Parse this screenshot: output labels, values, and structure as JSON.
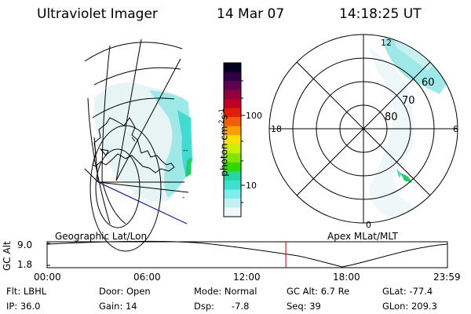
{
  "header": {
    "instrument": "Ultraviolet Imager",
    "date": "14 Mar 07",
    "time": "14:18:25 UT"
  },
  "colorbar": {
    "unit_label": "photon cm",
    "unit_sup1": "-2",
    "unit_mid": "s",
    "unit_sup2": "-1",
    "ticks": [
      "100",
      "10"
    ],
    "colors": [
      "#000020",
      "#300040",
      "#600050",
      "#90003a",
      "#c00020",
      "#e02000",
      "#f06000",
      "#f8a000",
      "#f8e000",
      "#c8f000",
      "#80e800",
      "#30d800",
      "#20d8a0",
      "#40e0d0",
      "#80ecec",
      "#c0f2f2",
      "#eef8f8"
    ]
  },
  "geo_map": {
    "label": "Geographic Lat/Lon",
    "tick_right": "--"
  },
  "polar_map": {
    "label": "Apex MLat/MLT",
    "mlt_labels": {
      "top": "12",
      "left": "18",
      "right": "6",
      "bottom": "0"
    },
    "lat_labels": [
      "60",
      "70",
      "80"
    ]
  },
  "orbit_plot": {
    "ylabel": "GC Alt",
    "yticks": [
      "9.0",
      "1.8"
    ],
    "xticks": [
      "00:00",
      "06:00",
      "12:00",
      "18:00",
      "23:59"
    ],
    "current_marker_time_hours": 14.31
  },
  "status": {
    "filter": "Flt: LBHL",
    "ip": "IP: 36.0",
    "door": "Door: Open",
    "gain": "Gain: 14",
    "mode": "Mode: Normal",
    "dsp_label": "Dsp:",
    "dsp_value": "-7.8",
    "gc_alt": "GC Alt: 6.7 Re",
    "seq": "Seq: 39",
    "glat": "GLat: -77.4",
    "glon": "GLon: 209.3"
  }
}
